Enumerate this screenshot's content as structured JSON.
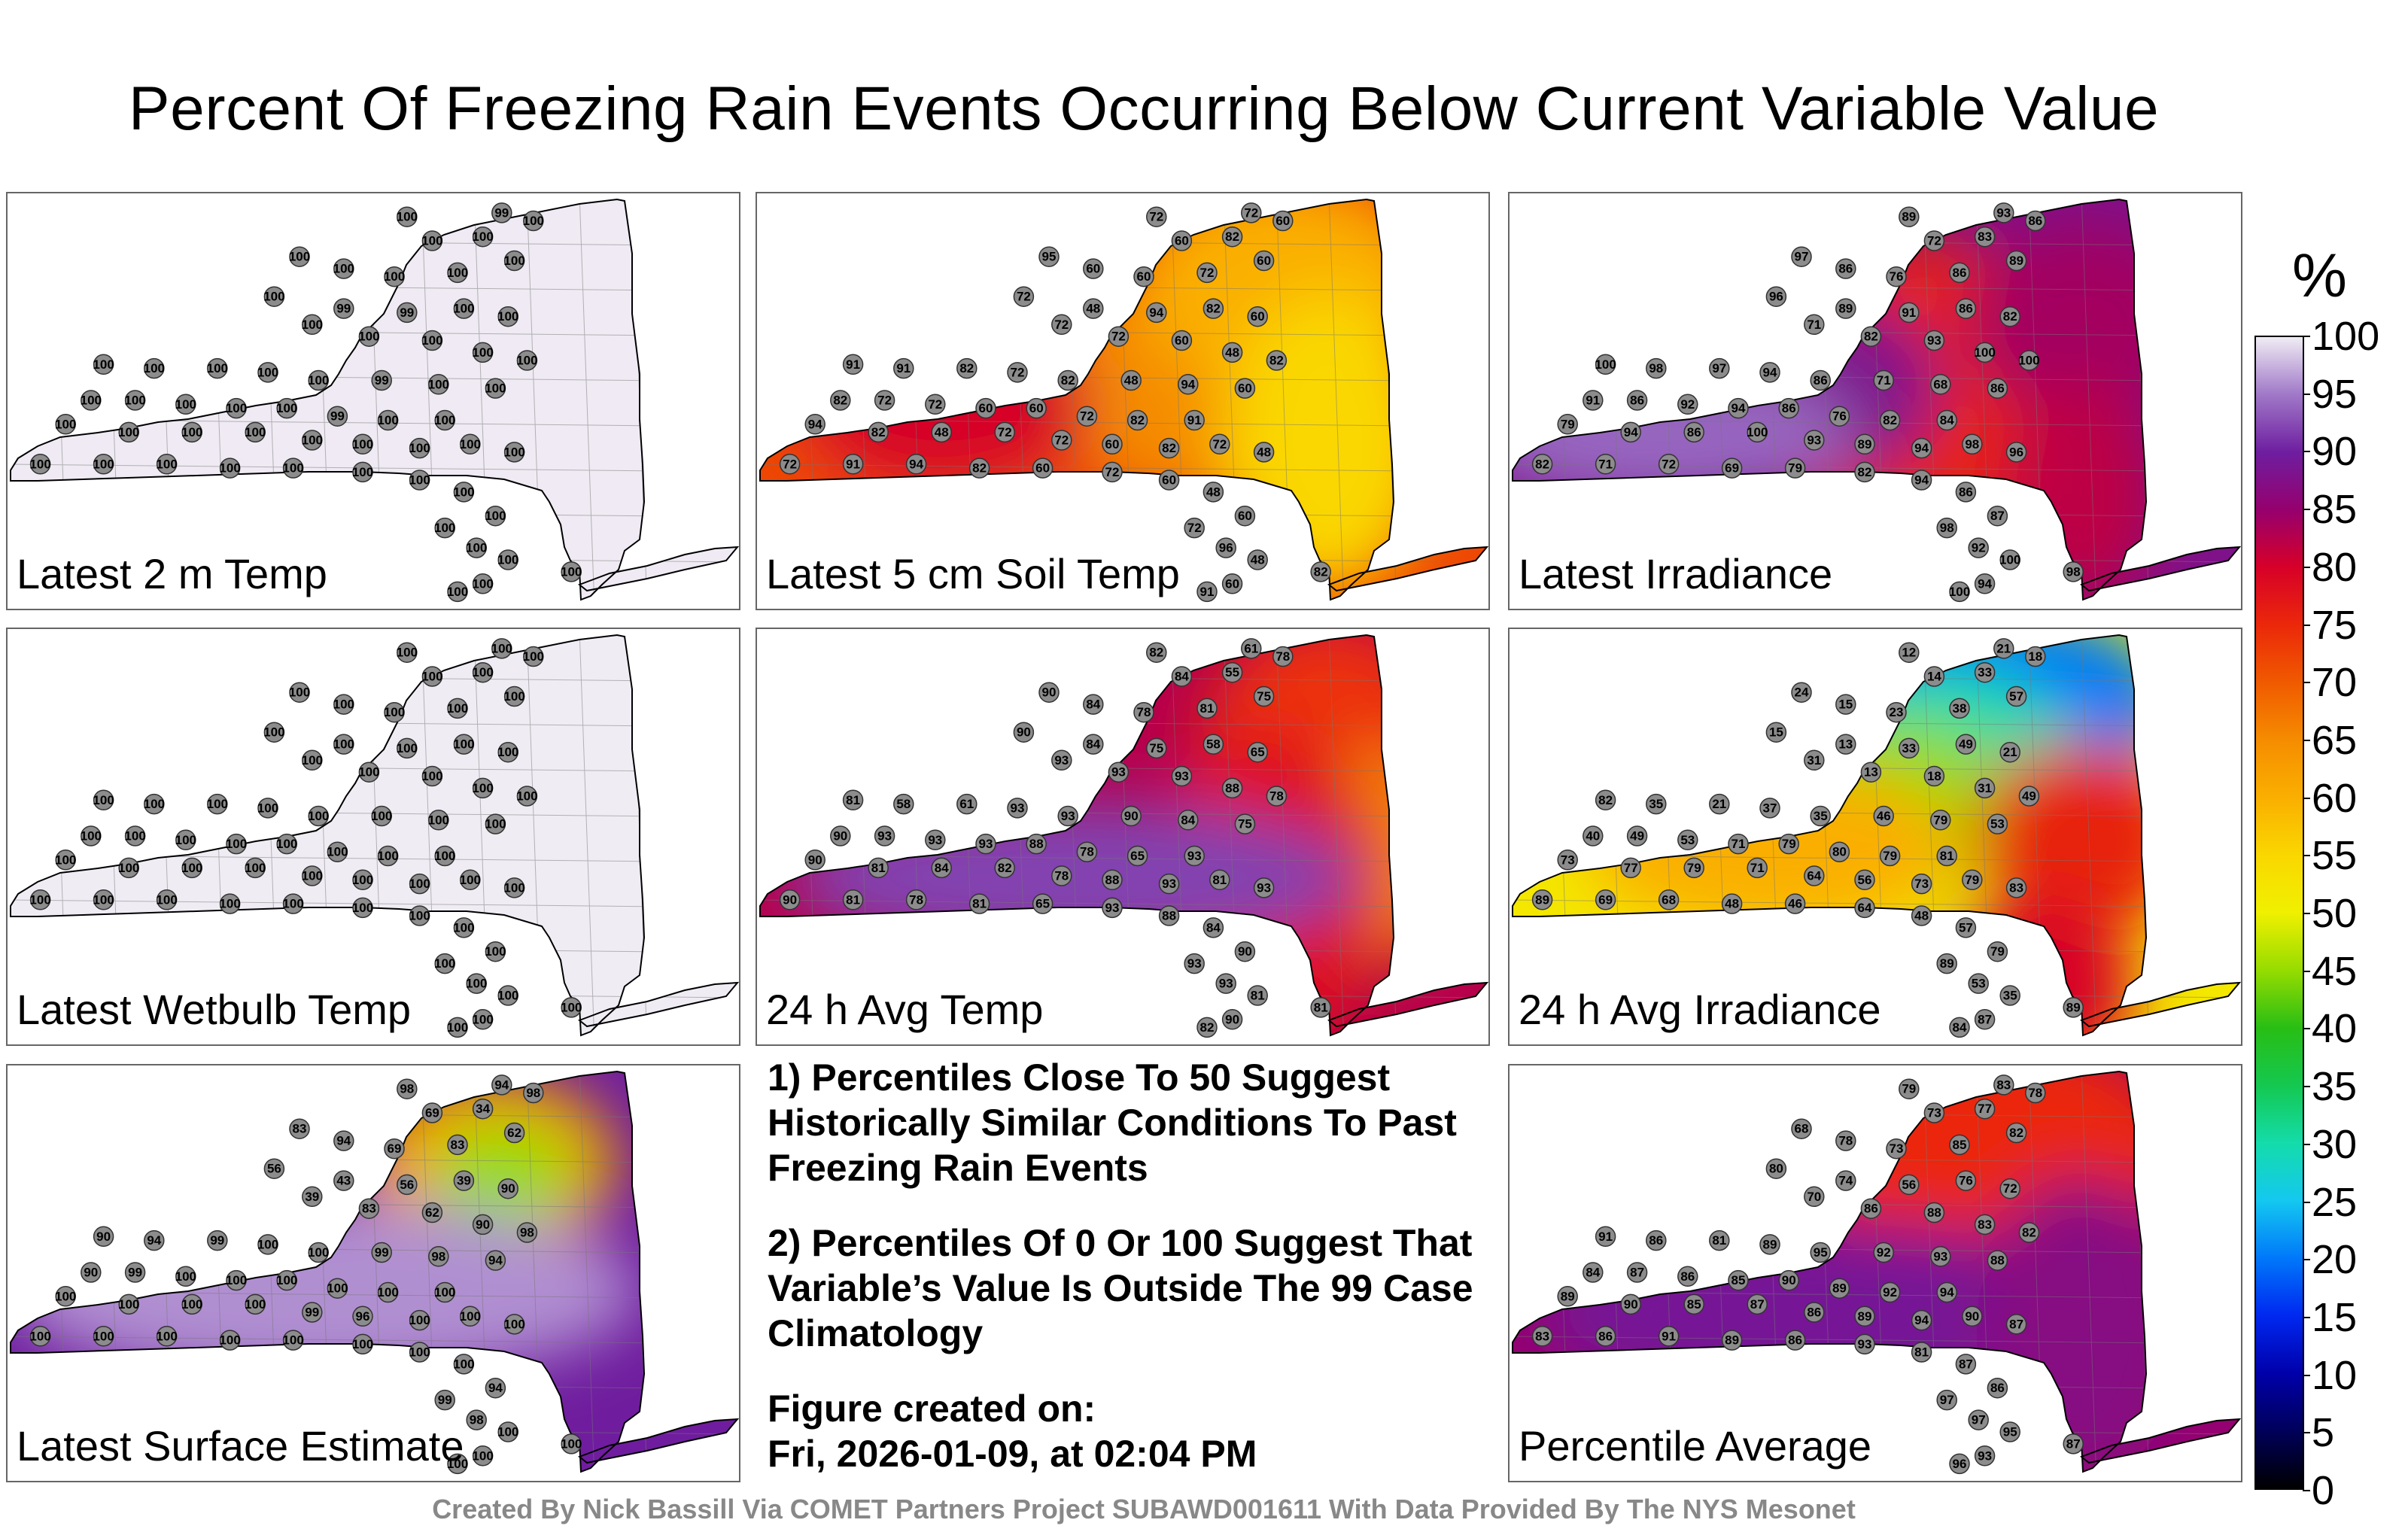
{
  "title": "Percent Of Freezing Rain Events Occurring Below Current Variable Value",
  "panels": [
    {
      "label": "Latest 2 m Temp",
      "scheme": "flat",
      "values": [
        100,
        99,
        100,
        100,
        100,
        100,
        100,
        100,
        100,
        100,
        100,
        99,
        99,
        100,
        100,
        100,
        100,
        100,
        100,
        100,
        100,
        100,
        100,
        100,
        100,
        99,
        100,
        100,
        100,
        100,
        100,
        100,
        100,
        99,
        100,
        100,
        100,
        100,
        100,
        100,
        100,
        100,
        100,
        100,
        100,
        100,
        100,
        100,
        100,
        100,
        100,
        100,
        100,
        100,
        100,
        100,
        100,
        100,
        100,
        100
      ]
    },
    {
      "label": "Latest 5 cm Soil Temp",
      "scheme": "soil",
      "values": [
        72,
        72,
        60,
        60,
        82,
        95,
        60,
        60,
        72,
        60,
        72,
        48,
        94,
        82,
        60,
        72,
        72,
        60,
        48,
        82,
        91,
        91,
        82,
        72,
        82,
        48,
        94,
        60,
        82,
        72,
        72,
        60,
        60,
        72,
        82,
        91,
        94,
        82,
        48,
        72,
        72,
        60,
        82,
        72,
        48,
        72,
        91,
        94,
        82,
        60,
        72,
        60,
        48,
        60,
        72,
        96,
        48,
        60,
        91,
        82
      ]
    },
    {
      "label": "Latest Irradiance",
      "scheme": "irr",
      "values": [
        89,
        93,
        86,
        72,
        83,
        97,
        86,
        76,
        86,
        89,
        96,
        89,
        91,
        86,
        82,
        71,
        82,
        93,
        100,
        100,
        100,
        98,
        97,
        94,
        86,
        71,
        68,
        86,
        91,
        86,
        92,
        94,
        86,
        76,
        82,
        84,
        79,
        94,
        86,
        100,
        93,
        89,
        94,
        98,
        96,
        82,
        71,
        72,
        69,
        79,
        82,
        94,
        86,
        87,
        98,
        92,
        100,
        94,
        100,
        98
      ]
    },
    {
      "label": "Latest Wetbulb Temp",
      "scheme": "flat",
      "values": [
        100,
        100,
        100,
        100,
        100,
        100,
        100,
        100,
        100,
        100,
        100,
        100,
        100,
        100,
        100,
        100,
        100,
        100,
        100,
        100,
        100,
        100,
        100,
        100,
        100,
        100,
        100,
        100,
        100,
        100,
        100,
        100,
        100,
        100,
        100,
        100,
        100,
        100,
        100,
        100,
        100,
        100,
        100,
        100,
        100,
        100,
        100,
        100,
        100,
        100,
        100,
        100,
        100,
        100,
        100,
        100,
        100,
        100,
        100,
        100
      ]
    },
    {
      "label": "24 h Avg Temp",
      "scheme": "avgt",
      "values": [
        82,
        61,
        78,
        84,
        55,
        90,
        84,
        78,
        81,
        75,
        90,
        84,
        75,
        58,
        65,
        93,
        93,
        93,
        88,
        78,
        81,
        58,
        61,
        93,
        93,
        90,
        84,
        75,
        90,
        93,
        93,
        93,
        88,
        78,
        65,
        93,
        90,
        81,
        84,
        82,
        78,
        88,
        93,
        81,
        93,
        90,
        81,
        78,
        81,
        65,
        93,
        88,
        84,
        90,
        93,
        93,
        81,
        90,
        82,
        81
      ]
    },
    {
      "label": "24 h Avg Irradiance",
      "scheme": "avgirr",
      "values": [
        12,
        21,
        18,
        14,
        33,
        24,
        15,
        23,
        38,
        57,
        15,
        13,
        33,
        49,
        21,
        31,
        13,
        18,
        31,
        49,
        82,
        35,
        21,
        37,
        35,
        46,
        79,
        53,
        40,
        49,
        53,
        71,
        79,
        80,
        79,
        81,
        73,
        77,
        79,
        71,
        64,
        56,
        73,
        79,
        83,
        89,
        69,
        68,
        48,
        46,
        64,
        48,
        57,
        79,
        89,
        53,
        35,
        87,
        84,
        89
      ]
    },
    {
      "label": "Latest Surface Estimate",
      "scheme": "surf",
      "values": [
        98,
        94,
        98,
        69,
        34,
        83,
        94,
        69,
        83,
        62,
        56,
        43,
        56,
        39,
        90,
        39,
        83,
        62,
        90,
        98,
        90,
        94,
        99,
        100,
        100,
        99,
        98,
        94,
        90,
        99,
        100,
        100,
        100,
        100,
        100,
        100,
        100,
        100,
        100,
        100,
        99,
        96,
        100,
        100,
        100,
        100,
        100,
        100,
        100,
        100,
        100,
        100,
        100,
        94,
        99,
        98,
        100,
        100,
        100,
        100
      ]
    },
    {
      "label": "Percentile Average",
      "scheme": "pavg",
      "values": [
        79,
        83,
        78,
        73,
        77,
        68,
        78,
        73,
        85,
        82,
        80,
        74,
        56,
        76,
        72,
        70,
        86,
        88,
        83,
        82,
        91,
        86,
        81,
        89,
        95,
        92,
        93,
        88,
        84,
        87,
        86,
        85,
        90,
        89,
        92,
        94,
        89,
        90,
        85,
        87,
        86,
        89,
        94,
        90,
        87,
        83,
        86,
        91,
        89,
        86,
        93,
        81,
        87,
        86,
        97,
        97,
        95,
        93,
        96,
        87
      ]
    }
  ],
  "notes": [
    "1) Percentiles Close To 50 Suggest Historically Similar Conditions To Past Freezing Rain Events",
    "2) Percentiles Of 0 Or 100 Suggest That Variable’s Value Is Outside The 99 Case Climatology"
  ],
  "figure_created_label": "Figure created on:",
  "figure_created_date": "Fri, 2026-01-09, at 02:04 PM",
  "credit": "Created By Nick Bassill Via COMET Partners Project SUBAWD001611 With Data Provided By The NYS Mesonet",
  "colorbar": {
    "unit": "%",
    "ticks": [
      "100",
      "95",
      "90",
      "85",
      "80",
      "75",
      "70",
      "65",
      "60",
      "55",
      "50",
      "45",
      "40",
      "35",
      "30",
      "25",
      "20",
      "15",
      "10",
      "5",
      "0"
    ]
  },
  "colors": {
    "flat_fill": "#e6dcec",
    "station": "#8c8c8c",
    "purple": "#6a2aa0",
    "red": "#e82010",
    "orange": "#f39000",
    "yellow": "#f0f000",
    "cyan": "#19d8ec"
  }
}
